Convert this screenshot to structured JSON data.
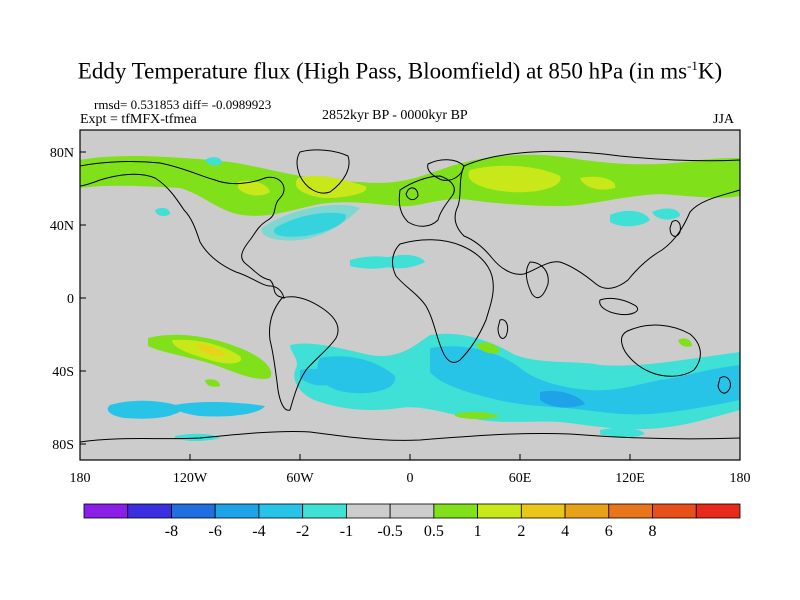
{
  "title": {
    "main": "Eddy Temperature flux (High Pass, Bloomfield) at 850 hPa (in ms",
    "superscript": "-1",
    "unit_tail": "K)"
  },
  "stats": "rmsd= 0.531853 diff= -0.0989923",
  "experiment": "Expt = tfMFX-tfmea",
  "period": "2852kyr BP - 0000kyr BP",
  "season": "JJA",
  "lat_ticks": [
    "80N",
    "40N",
    "0",
    "40S",
    "80S"
  ],
  "lon_ticks": [
    "180",
    "120W",
    "60W",
    "0",
    "60E",
    "120E",
    "180"
  ],
  "colorbar": {
    "colors": [
      "#8a1fe8",
      "#3b2ee0",
      "#1f6fe0",
      "#1ea3e8",
      "#27c4e8",
      "#3fe0d6",
      "#cccccc",
      "#cccccc",
      "#80e01a",
      "#c8e81a",
      "#e8c61a",
      "#e8a21a",
      "#e8751a",
      "#e8501a",
      "#e82a1a"
    ],
    "labels": [
      "-8",
      "-6",
      "-4",
      "-2",
      "-1",
      "-0.5",
      "0.5",
      "1",
      "2",
      "4",
      "6",
      "8"
    ]
  },
  "colors": {
    "background_field": "#cccccc",
    "green": "#80e01a",
    "yellowgreen": "#c8e81a",
    "yellow": "#e8d21a",
    "cyan_light": "#3fe0d6",
    "cyan": "#27c4e8",
    "blue_light": "#1ea3e8"
  }
}
